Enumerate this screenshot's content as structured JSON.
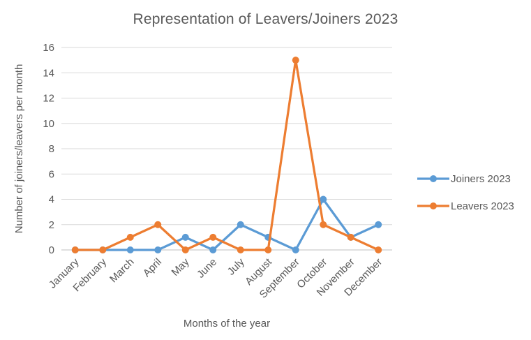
{
  "title": "Representation of Leavers/Joiners 2023",
  "chart_data": {
    "type": "line",
    "title": "Representation of Leavers/Joiners 2023",
    "xlabel": "Months of the year",
    "ylabel": "Number of joiners/leavers per month",
    "categories": [
      "January",
      "February",
      "March",
      "April",
      "May",
      "June",
      "July",
      "August",
      "September",
      "October",
      "November",
      "December"
    ],
    "series": [
      {
        "name": "Joiners 2023",
        "color": "#5B9BD5",
        "values": [
          0,
          0,
          0,
          0,
          1,
          0,
          2,
          1,
          0,
          4,
          1,
          2
        ]
      },
      {
        "name": "Leavers 2023",
        "color": "#ED7D31",
        "values": [
          0,
          0,
          1,
          2,
          0,
          1,
          0,
          0,
          15,
          2,
          1,
          0
        ]
      }
    ],
    "ylim": [
      0,
      16
    ],
    "yticks": [
      0,
      2,
      4,
      6,
      8,
      10,
      12,
      14,
      16
    ],
    "grid": true,
    "legend_position": "right"
  },
  "colors": {
    "text": "#595959",
    "grid": "#D9D9D9",
    "axis": "#BFBFBF"
  }
}
